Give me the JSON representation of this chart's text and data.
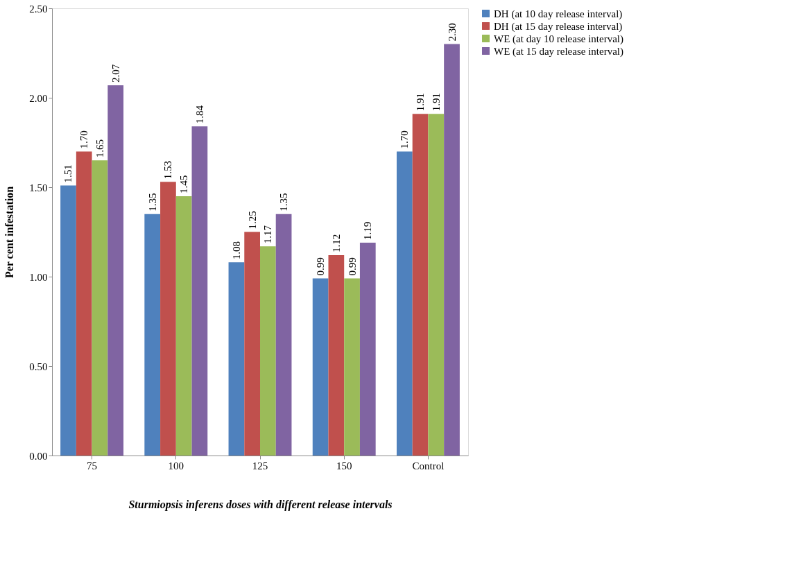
{
  "chart_data": {
    "type": "bar",
    "xlabel": "Sturmiopsis inferens doses with different release intervals",
    "ylabel": "Per cent infestation",
    "categories": [
      "75",
      "100",
      "125",
      "150",
      "Control"
    ],
    "series": [
      {
        "name": "DH (at 10 day release interval)",
        "color": "#4f81bd",
        "values": [
          1.51,
          1.35,
          1.08,
          0.99,
          1.7
        ],
        "value_labels": [
          "1.51",
          "1.35",
          "1.08",
          "0.99",
          "1.70"
        ]
      },
      {
        "name": "DH (at 15 day release interval)",
        "color": "#c0504d",
        "values": [
          1.7,
          1.53,
          1.25,
          1.12,
          1.91
        ],
        "value_labels": [
          "1.70",
          "1.53",
          "1.25",
          "1.12",
          "1.91"
        ]
      },
      {
        "name": "WE (at day 10 release interval)",
        "color": "#9bbb59",
        "values": [
          1.65,
          1.45,
          1.17,
          0.99,
          1.91
        ],
        "value_labels": [
          "1.65",
          "1.45",
          "1.17",
          "0.99",
          "1.91"
        ]
      },
      {
        "name": "WE (at 15 day release interval)",
        "color": "#8064a2",
        "values": [
          2.07,
          1.84,
          1.35,
          1.19,
          2.3
        ],
        "value_labels": [
          "2.07",
          "1.84",
          "1.35",
          "1.19",
          "2.30"
        ]
      }
    ],
    "ylim": [
      0,
      2.5
    ],
    "yticks": [
      {
        "value": 0,
        "label": "0.00"
      },
      {
        "value": 0.5,
        "label": "0.50"
      },
      {
        "value": 1,
        "label": "1.00"
      },
      {
        "value": 1.5,
        "label": "1.50"
      },
      {
        "value": 2,
        "label": "2.00"
      },
      {
        "value": 2.5,
        "label": "2.50"
      }
    ],
    "grid": false,
    "legend": "right"
  }
}
